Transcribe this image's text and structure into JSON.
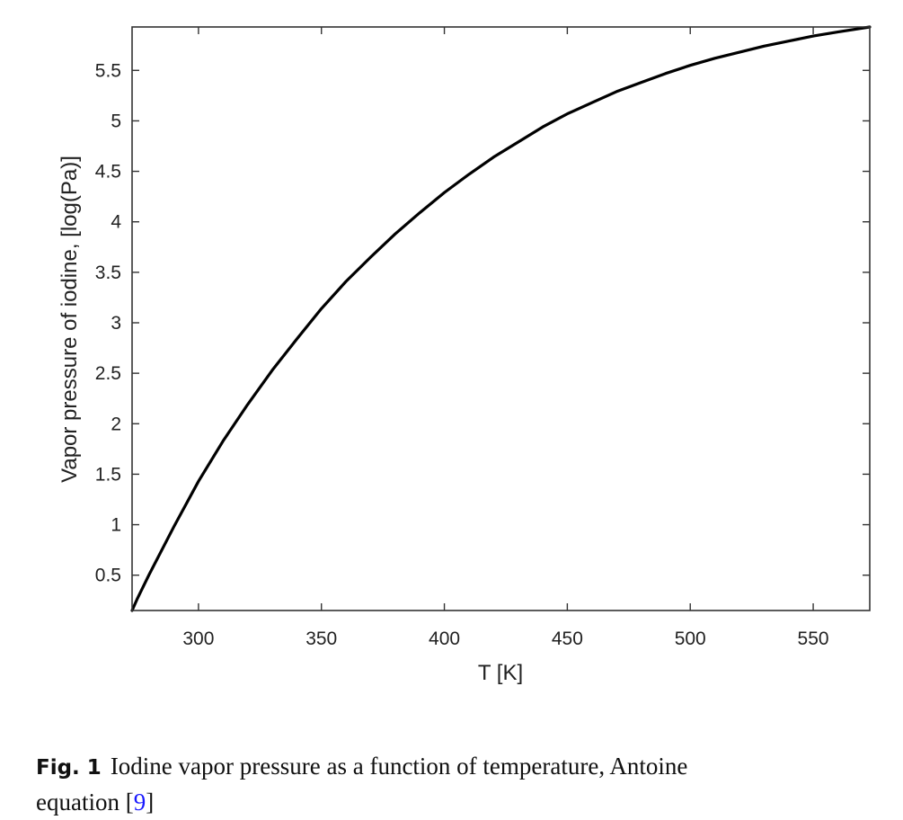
{
  "caption": {
    "label": "Fig. 1",
    "text_line1": "Iodine vapor pressure as a function of temperature, Antoine",
    "text_line2_before": "equation [",
    "ref": "9",
    "text_line2_after": "]"
  },
  "chart_data": {
    "type": "line",
    "xlabel": "T [K]",
    "ylabel": "Vapor pressure of iodine, [log(Pa)]",
    "xlim": [
      273,
      573
    ],
    "ylim": [
      0.15,
      5.93
    ],
    "xticks": [
      300,
      350,
      400,
      450,
      500,
      550
    ],
    "yticks": [
      0.5,
      1,
      1.5,
      2,
      2.5,
      3,
      3.5,
      4,
      4.5,
      5,
      5.5
    ],
    "grid": false,
    "line_color": "#000000",
    "series": [
      {
        "x": [
          273,
          275,
          280,
          290,
          300,
          310,
          320,
          330,
          340,
          350,
          360,
          370,
          380,
          390,
          400,
          410,
          420,
          430,
          440,
          450,
          460,
          470,
          480,
          490,
          500,
          510,
          520,
          530,
          540,
          550,
          560,
          573
        ],
        "y": [
          0.15,
          0.26,
          0.51,
          0.98,
          1.43,
          1.83,
          2.19,
          2.53,
          2.84,
          3.14,
          3.41,
          3.65,
          3.88,
          4.09,
          4.29,
          4.47,
          4.64,
          4.79,
          4.94,
          5.07,
          5.18,
          5.29,
          5.38,
          5.47,
          5.55,
          5.62,
          5.68,
          5.74,
          5.79,
          5.84,
          5.88,
          5.93
        ]
      }
    ]
  }
}
